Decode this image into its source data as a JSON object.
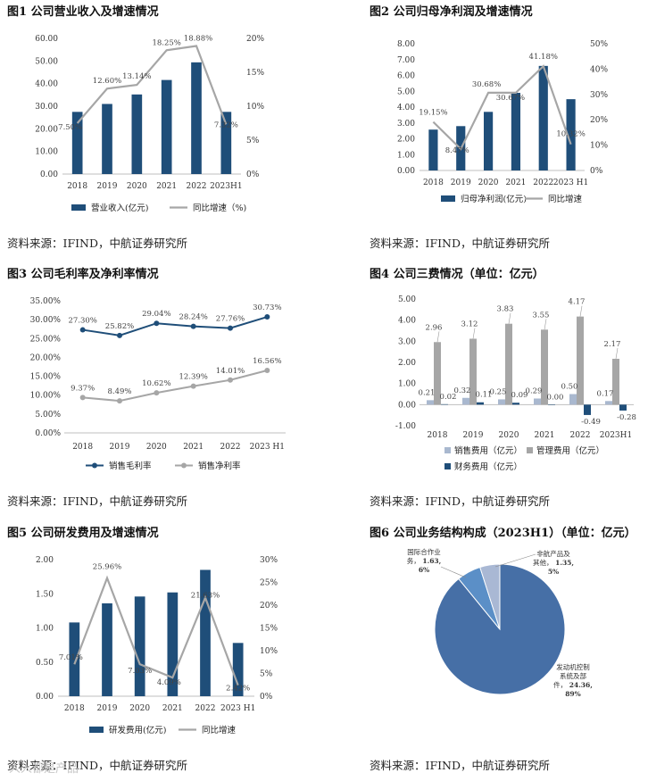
{
  "colors": {
    "bar": "#1f4e79",
    "line_gray": "#a6a6a6",
    "gross": "#1f4e79",
    "net": "#a6a6a6",
    "sales": "#a9b8cf",
    "mgmt": "#a6a6a6",
    "fin": "#1f4e79",
    "pie_main": "#466fa6",
    "pie_intl": "#5b8fc7",
    "pie_other": "#a9b8d4"
  },
  "fig1": {
    "title": "图1  公司营业收入及增速情况",
    "source": "资料来源：IFIND，中航证券研究所"
  },
  "fig2": {
    "title": "图2  公司归母净利润及增速情况",
    "source": "资料来源：IFIND，中航证券研究所"
  },
  "fig3": {
    "title": "图3  公司毛利率及净利率情况",
    "source": "资料来源：IFIND，中航证券研究所"
  },
  "fig4": {
    "title": "图4  公司三费情况（单位：亿元）",
    "source": "资料来源：IFIND，中航证券研究所"
  },
  "fig5": {
    "title": "图5  公司研发费用及增速情况",
    "source": "资料来源：IFIND，中航证券研究所"
  },
  "fig6": {
    "title": "图6  公司业务结构构成（2023H1）（单位：亿元）",
    "source": "资料来源：IFIND，中航证券研究所"
  },
  "watermark": "人人都是产品",
  "chart_data": [
    {
      "id": "fig1",
      "type": "bar",
      "categories": [
        "2018",
        "2019",
        "2020",
        "2021",
        "2022",
        "2023H1"
      ],
      "series": [
        {
          "name": "营业收入(亿元)",
          "type": "bar",
          "axis": "left",
          "values": [
            27.5,
            31.0,
            35.2,
            41.6,
            49.4,
            27.5
          ]
        },
        {
          "name": "同比增速（%)",
          "type": "line",
          "axis": "right",
          "values": [
            7.5,
            12.6,
            13.14,
            18.25,
            18.88,
            7.32
          ],
          "labels": [
            "7.50%",
            "12.60%",
            "13.14%",
            "18.25%",
            "18.88%",
            "7.32%"
          ]
        }
      ],
      "ylim_left": [
        0,
        60
      ],
      "yticks_left": [
        "0.00",
        "10.00",
        "20.00",
        "30.00",
        "40.00",
        "50.00",
        "60.00"
      ],
      "ylim_right": [
        0,
        20
      ],
      "yticks_right": [
        "0%",
        "5%",
        "10%",
        "15%",
        "20%"
      ]
    },
    {
      "id": "fig2",
      "type": "bar",
      "categories": [
        "2018",
        "2019",
        "2020",
        "2021",
        "2022",
        "2023 H1"
      ],
      "series": [
        {
          "name": "归母净利润(亿元)",
          "type": "bar",
          "axis": "left",
          "values": [
            2.58,
            2.8,
            3.7,
            4.9,
            6.6,
            4.5
          ]
        },
        {
          "name": "同比增速",
          "type": "line",
          "axis": "right",
          "values": [
            19.15,
            8.47,
            30.68,
            30.67,
            41.18,
            10.32
          ],
          "labels": [
            "19.15%",
            "8.47%",
            "30.68%",
            "30.67%",
            "41.18%",
            "10.32%"
          ]
        }
      ],
      "ylim_left": [
        0,
        8
      ],
      "yticks_left": [
        "0.00",
        "1.00",
        "2.00",
        "3.00",
        "4.00",
        "5.00",
        "6.00",
        "7.00",
        "8.00"
      ],
      "ylim_right": [
        0,
        50
      ],
      "yticks_right": [
        "0%",
        "10%",
        "20%",
        "30%",
        "40%",
        "50%"
      ]
    },
    {
      "id": "fig3",
      "type": "line",
      "categories": [
        "2018",
        "2019",
        "2020",
        "2021",
        "2022",
        "2023 H1"
      ],
      "series": [
        {
          "name": "销售毛利率",
          "values": [
            27.3,
            25.82,
            29.04,
            28.24,
            27.76,
            30.73
          ],
          "labels": [
            "27.30%",
            "25.82%",
            "29.04%",
            "28.24%",
            "27.76%",
            "30.73%"
          ]
        },
        {
          "name": "销售净利率",
          "values": [
            9.37,
            8.49,
            10.62,
            12.39,
            14.01,
            16.56
          ],
          "labels": [
            "9.37%",
            "8.49%",
            "10.62%",
            "12.39%",
            "14.01%",
            "16.56%"
          ]
        }
      ],
      "ylim": [
        0,
        35
      ],
      "yticks": [
        "0.00%",
        "5.00%",
        "10.00%",
        "15.00%",
        "20.00%",
        "25.00%",
        "30.00%",
        "35.00%"
      ]
    },
    {
      "id": "fig4",
      "type": "bar",
      "categories": [
        "2018",
        "2019",
        "2020",
        "2021",
        "2022",
        "2023H1"
      ],
      "series": [
        {
          "name": "销售费用（亿元）",
          "values": [
            0.21,
            0.32,
            0.25,
            0.29,
            0.5,
            0.17
          ],
          "labels": [
            "0.21",
            "0.32",
            "0.25",
            "0.29",
            "0.50",
            "0.17"
          ]
        },
        {
          "name": "管理费用（亿元）",
          "values": [
            2.96,
            3.12,
            3.83,
            3.55,
            4.17,
            2.17
          ],
          "labels": [
            "2.96",
            "3.12",
            "3.83",
            "3.55",
            "4.17",
            "2.17"
          ]
        },
        {
          "name": "财务费用（亿元）",
          "values": [
            0.02,
            0.11,
            0.09,
            0.0,
            -0.49,
            -0.28
          ],
          "labels": [
            "0.02",
            "0.11",
            "0.09",
            "0.00",
            "-0.49",
            "-0.28"
          ]
        }
      ],
      "ylim": [
        -1,
        5
      ],
      "yticks": [
        "-1.00",
        "0.00",
        "1.00",
        "2.00",
        "3.00",
        "4.00",
        "5.00"
      ]
    },
    {
      "id": "fig5",
      "type": "bar",
      "categories": [
        "2018",
        "2019",
        "2020",
        "2021",
        "2022",
        "2023 H1"
      ],
      "series": [
        {
          "name": "研发费用(亿元)",
          "type": "bar",
          "axis": "left",
          "values": [
            1.08,
            1.36,
            1.46,
            1.52,
            1.85,
            0.78
          ]
        },
        {
          "name": "同比增速",
          "type": "line",
          "axis": "right",
          "values": [
            7.01,
            25.96,
            7.03,
            4.09,
            21.63,
            2.42
          ],
          "labels": [
            "7.01%",
            "25.96%",
            "7.03%",
            "4.09%",
            "21.63%",
            "2.42%"
          ]
        }
      ],
      "ylim_left": [
        0,
        2
      ],
      "yticks_left": [
        "0.00",
        "0.50",
        "1.00",
        "1.50",
        "2.00"
      ],
      "ylim_right": [
        0,
        30
      ],
      "yticks_right": [
        "0%",
        "5%",
        "10%",
        "15%",
        "20%",
        "25%",
        "30%"
      ]
    },
    {
      "id": "fig6",
      "type": "pie",
      "slices": [
        {
          "name": "发动机控制系统及部件",
          "value": 24.36,
          "pct": "89%",
          "label_lines": [
            "发动机控制",
            "系统及部",
            "件，"
          ],
          "value_text": "24.36,",
          "pct_text": "89%"
        },
        {
          "name": "国际合作业务",
          "value": 1.63,
          "pct": "6%",
          "label_lines": [
            "国际合作业",
            "务，"
          ],
          "value_text": "1.63,",
          "pct_text": "6%"
        },
        {
          "name": "非航产品及其他",
          "value": 1.35,
          "pct": "5%",
          "label_lines": [
            "非航产品及",
            "其他，"
          ],
          "value_text": "1.35,",
          "pct_text": "5%"
        }
      ]
    }
  ]
}
